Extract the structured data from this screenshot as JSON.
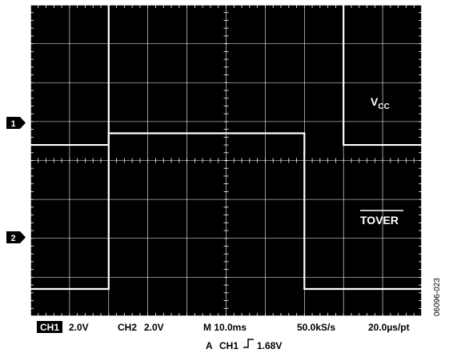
{
  "chart_data": {
    "type": "line",
    "x": [
      0,
      1,
      2,
      3,
      4,
      5,
      6,
      7,
      8,
      9,
      10
    ],
    "series": [
      {
        "name": "V",
        "name_sub": "CC",
        "channel_marker": "1",
        "values": [
          0,
          0,
          2,
          2,
          2,
          2,
          2,
          2,
          0,
          0,
          0
        ]
      },
      {
        "name": "TOVER",
        "channel_marker": "2",
        "values": [
          0,
          0,
          2,
          2,
          2,
          2,
          2,
          0,
          0,
          0,
          0
        ]
      }
    ],
    "grid": true,
    "colors": {
      "background": "#000000",
      "grid": "#ffffff",
      "trace": "#ffffff"
    },
    "readout": {
      "ch1_badge": "CH1",
      "ch1_scale": "2.0V",
      "ch2": "CH2",
      "ch2_scale": "2.0V",
      "timebase": "M 10.0ms",
      "sample_rate": "50.0kS/s",
      "resolution": "20.0µs/pt",
      "trigger_prefix": "A",
      "trigger_channel": "CH1",
      "trigger_level": "1.68V"
    },
    "figure_id": "06096-023"
  }
}
